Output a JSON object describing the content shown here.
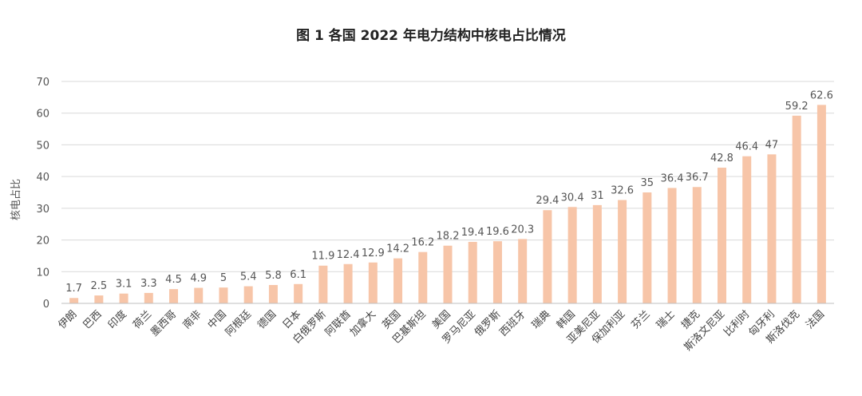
{
  "chart_data": {
    "type": "bar",
    "title": "图 1 各国 2022 年电力结构中核电占比情况",
    "ylabel": "核电占比",
    "xlabel": "",
    "ylim": [
      0,
      70
    ],
    "yticks": [
      0,
      10,
      20,
      30,
      40,
      50,
      60,
      70
    ],
    "grid": true,
    "bar_color": "#f7c5a8",
    "categories": [
      "伊朗",
      "巴西",
      "印度",
      "荷兰",
      "墨西哥",
      "南非",
      "中国",
      "阿根廷",
      "德国",
      "日本",
      "白俄罗斯",
      "阿联酋",
      "加拿大",
      "英国",
      "巴基斯坦",
      "美国",
      "罗马尼亚",
      "俄罗斯",
      "西班牙",
      "瑞典",
      "韩国",
      "亚美尼亚",
      "保加利亚",
      "芬兰",
      "瑞士",
      "捷克",
      "斯洛文尼亚",
      "比利时",
      "匈牙利",
      "斯洛伐克",
      "法国"
    ],
    "values": [
      1.7,
      2.5,
      3.1,
      3.3,
      4.5,
      4.9,
      5,
      5.4,
      5.8,
      6.1,
      11.9,
      12.4,
      12.9,
      14.2,
      16.2,
      18.2,
      19.4,
      19.6,
      20.3,
      29.4,
      30.4,
      31,
      32.6,
      35,
      36.4,
      36.7,
      42.8,
      46.4,
      47,
      59.2,
      62.6
    ]
  }
}
